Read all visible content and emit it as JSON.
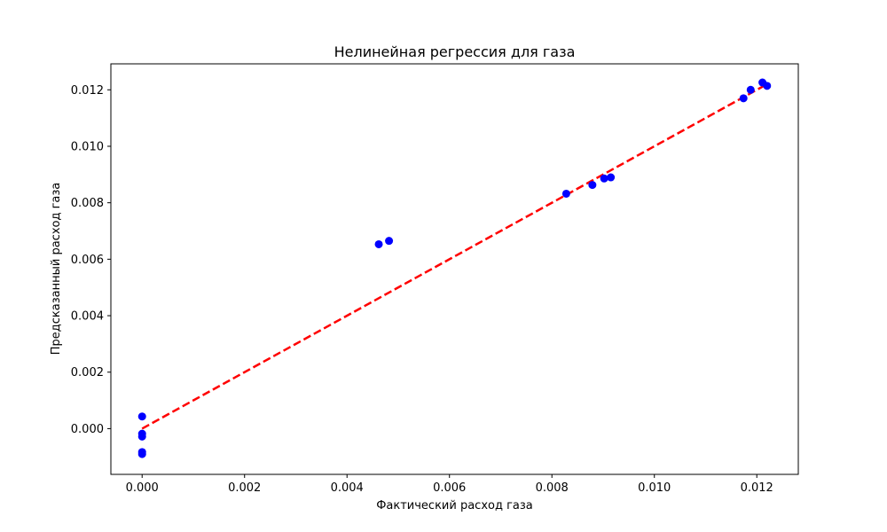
{
  "chart_data": {
    "type": "scatter",
    "title": "Нелинейная регрессия для газа",
    "xlabel": "Фактический расход газа",
    "ylabel": "Предсказанный расход газа",
    "xlim": [
      -0.00061,
      0.01281
    ],
    "ylim": [
      -0.00162,
      0.01292
    ],
    "x_ticks": [
      0.0,
      0.002,
      0.004,
      0.006,
      0.008,
      0.01,
      0.012
    ],
    "x_tick_labels": [
      "0.000",
      "0.002",
      "0.004",
      "0.006",
      "0.008",
      "0.010",
      "0.012"
    ],
    "y_ticks": [
      0.0,
      0.002,
      0.004,
      0.006,
      0.008,
      0.01,
      0.012
    ],
    "y_tick_labels": [
      "0.000",
      "0.002",
      "0.004",
      "0.006",
      "0.008",
      "0.010",
      "0.012"
    ],
    "grid": false,
    "legend": "none",
    "series": [
      {
        "kind": "scatter",
        "color": "#0000ff",
        "points": [
          {
            "x": 0.0,
            "y": 0.00043
          },
          {
            "x": 0.0,
            "y": -0.00018
          },
          {
            "x": 0.0,
            "y": -0.00028
          },
          {
            "x": 0.0,
            "y": -0.00083
          },
          {
            "x": 0.0,
            "y": -0.0009
          },
          {
            "x": 0.00462,
            "y": 0.00653
          },
          {
            "x": 0.00482,
            "y": 0.00665
          },
          {
            "x": 0.00828,
            "y": 0.00832
          },
          {
            "x": 0.00879,
            "y": 0.00863
          },
          {
            "x": 0.00902,
            "y": 0.00886
          },
          {
            "x": 0.00915,
            "y": 0.0089
          },
          {
            "x": 0.01174,
            "y": 0.0117
          },
          {
            "x": 0.01188,
            "y": 0.012
          },
          {
            "x": 0.01211,
            "y": 0.01226
          },
          {
            "x": 0.0122,
            "y": 0.01214
          }
        ]
      },
      {
        "kind": "line",
        "style": "dashed",
        "color": "#ff0000",
        "points": [
          {
            "x": 0.0,
            "y": 0.0
          },
          {
            "x": 0.0122,
            "y": 0.0122
          }
        ]
      }
    ]
  }
}
